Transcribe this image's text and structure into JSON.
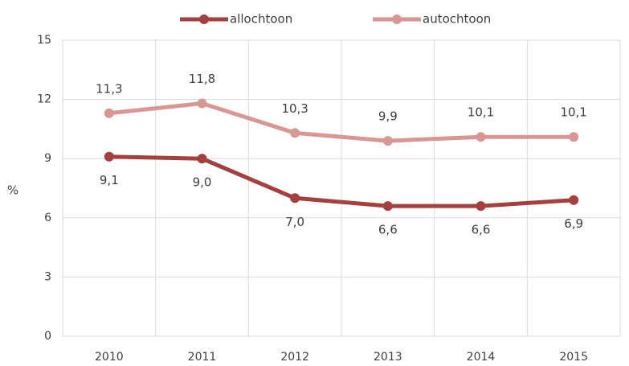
{
  "chart_data": {
    "type": "line",
    "y_label": "%",
    "categories": [
      "2010",
      "2011",
      "2012",
      "2013",
      "2014",
      "2015"
    ],
    "series": [
      {
        "name": "allochtoon",
        "color": "#a5403f",
        "values": [
          9.1,
          9.0,
          7.0,
          6.6,
          6.6,
          6.9
        ],
        "value_labels": [
          "9,1",
          "9,0",
          "7,0",
          "6,6",
          "6,6",
          "6,9"
        ]
      },
      {
        "name": "autochtoon",
        "color": "#d99694",
        "values": [
          11.3,
          11.8,
          10.3,
          9.9,
          10.1,
          10.1
        ],
        "value_labels": [
          "11,3",
          "11,8",
          "10,3",
          "9,9",
          "10,1",
          "10,1"
        ]
      }
    ],
    "ylim": [
      0,
      15
    ],
    "yticks": [
      0,
      3,
      6,
      9,
      12,
      15
    ],
    "grid": true,
    "legend": "top"
  }
}
